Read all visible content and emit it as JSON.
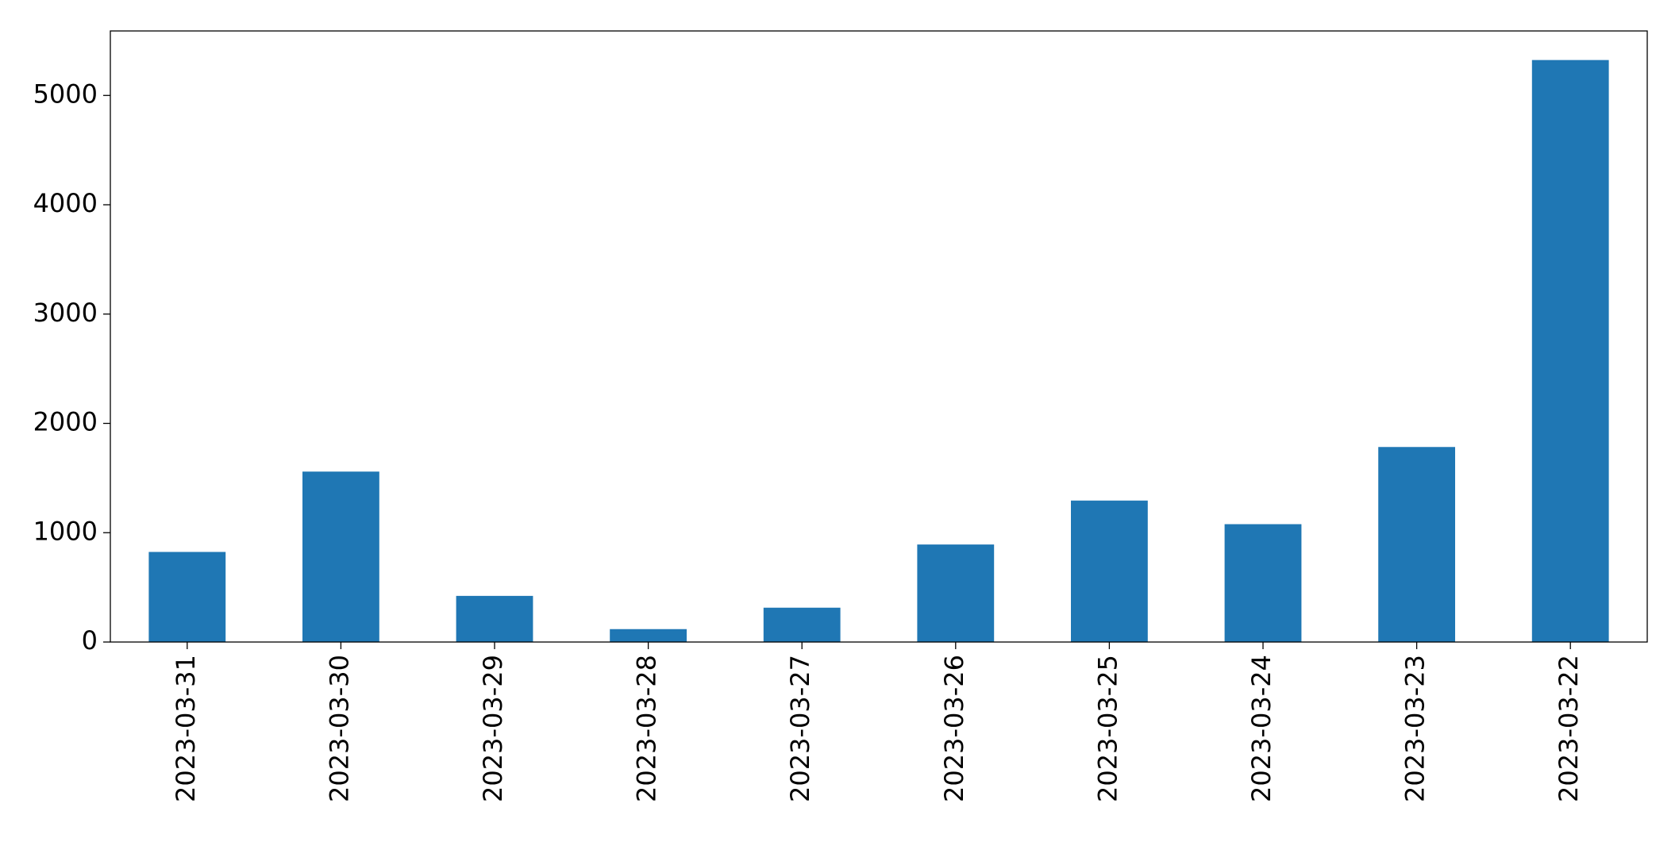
{
  "chart_data": {
    "type": "bar",
    "categories": [
      "2023-03-31",
      "2023-03-30",
      "2023-03-29",
      "2023-03-28",
      "2023-03-27",
      "2023-03-26",
      "2023-03-25",
      "2023-03-24",
      "2023-03-23",
      "2023-03-22"
    ],
    "values": [
      824,
      1559,
      422,
      118,
      314,
      892,
      1294,
      1078,
      1784,
      5324
    ],
    "color": "#1f77b4",
    "ylim": [
      0,
      5590
    ],
    "yticks": [
      0,
      1000,
      2000,
      3000,
      4000,
      5000
    ],
    "grid": false
  }
}
